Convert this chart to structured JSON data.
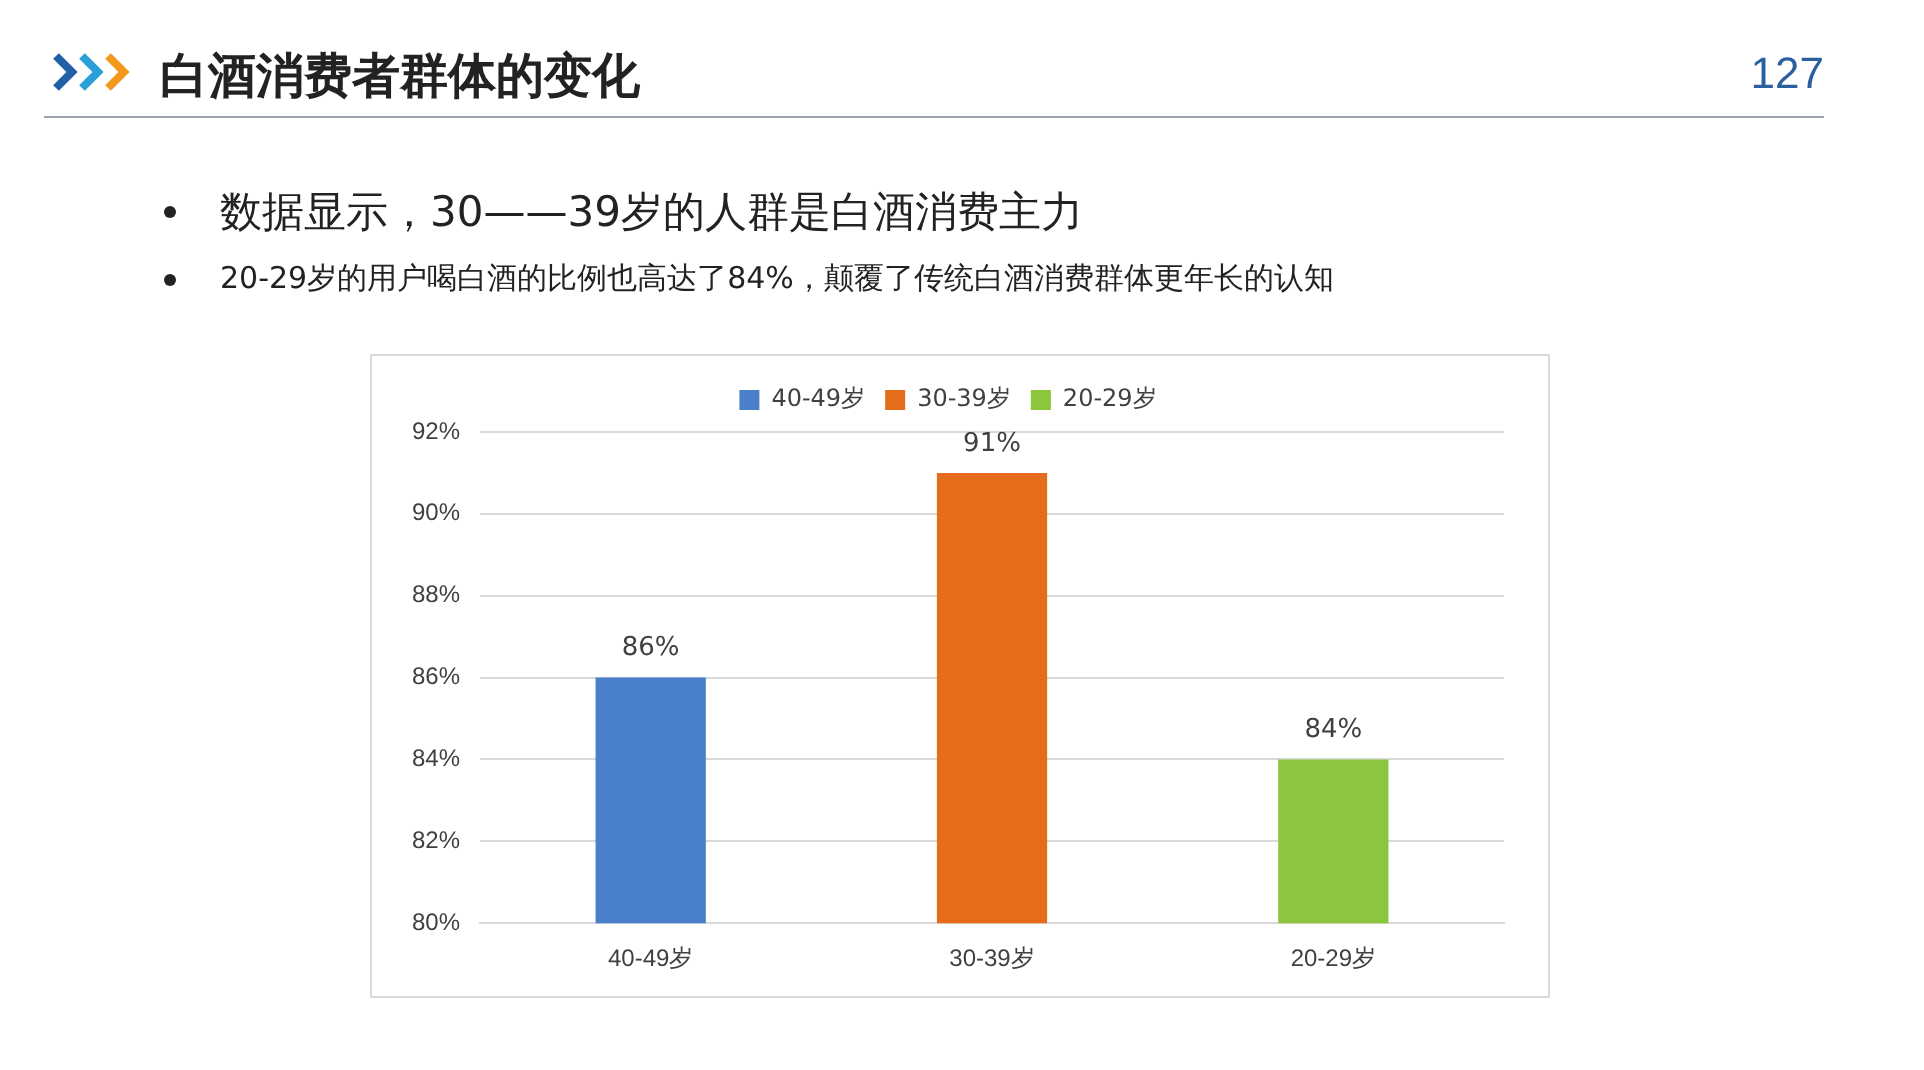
{
  "chart_data": {
    "type": "bar",
    "title": "白酒消费者群体的变化",
    "annotations": [
      "127",
      "数据显示，30——39岁的人群是白酒消费主力",
      "20-29岁的用户喝白酒的比例也高达了84%，颠覆了传统白酒消费群体更年长的认知"
    ],
    "categories": [
      "40-49岁",
      "30-39岁",
      "20-29岁"
    ],
    "series": [
      {
        "name": "40-49岁",
        "color": "#4a7fc9",
        "values": [
          86,
          null,
          null
        ],
        "value_labels": [
          "86%",
          null,
          null
        ]
      },
      {
        "name": "30-39岁",
        "color": "#e46c1a",
        "values": [
          null,
          91,
          null
        ],
        "value_labels": [
          null,
          "91%",
          null
        ]
      },
      {
        "name": "20-29岁",
        "color": "#8cc63f",
        "values": [
          null,
          null,
          84
        ],
        "value_labels": [
          null,
          null,
          "84%"
        ]
      }
    ],
    "ylim": [
      80,
      92
    ],
    "yticks": [
      {
        "value": 80,
        "label": "80%"
      },
      {
        "value": 82,
        "label": "82%"
      },
      {
        "value": 84,
        "label": "84%"
      },
      {
        "value": 86,
        "label": "86%"
      },
      {
        "value": 88,
        "label": "88%"
      },
      {
        "value": 90,
        "label": "90%"
      },
      {
        "value": 92,
        "label": "92%"
      }
    ],
    "grid": "y",
    "legend": "top"
  }
}
